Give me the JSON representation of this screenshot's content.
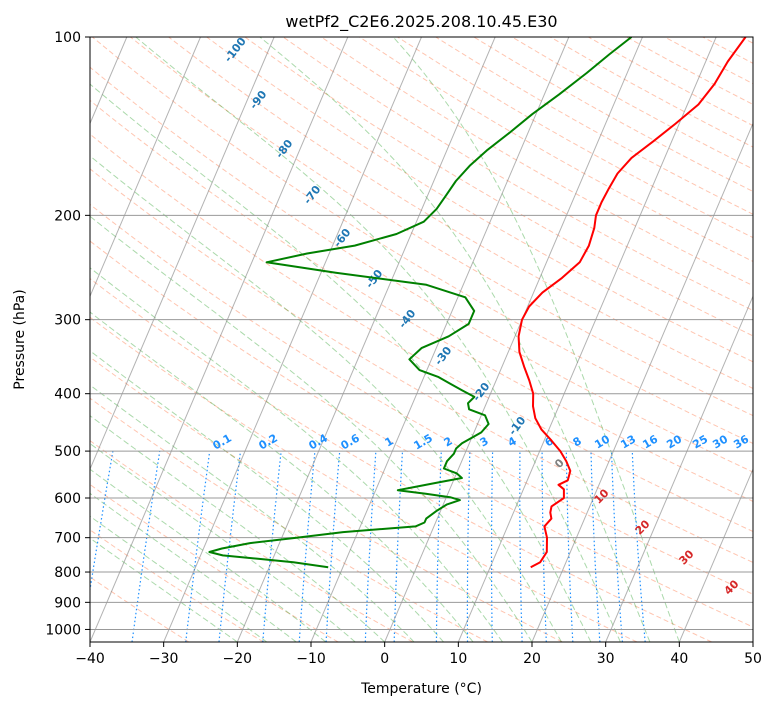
{
  "chart_data": {
    "type": "skew-t",
    "title": "wetPf2_C2E6.2025.208.10.45.E30",
    "xlabel": "Temperature (°C)",
    "ylabel": "Pressure (hPa)",
    "xlim": [
      -40,
      50
    ],
    "ylim": [
      1050,
      100
    ],
    "y_scale": "log",
    "grid": true,
    "x_ticks": [
      -40,
      -30,
      -20,
      -10,
      0,
      10,
      20,
      30,
      40,
      50
    ],
    "y_ticks": [
      100,
      200,
      300,
      400,
      500,
      600,
      700,
      800,
      900,
      1000
    ],
    "colors": {
      "temperature": "#ff0000",
      "dewpoint": "#008000",
      "dry_adiabat": "#ff7f50",
      "moist_adiabat": "#2ca02c",
      "mixing_ratio": "#1e90ff",
      "isotherm": "#808080",
      "potential_temp_label": "#1f77b4",
      "warm_isotherm_label": "#d62728"
    },
    "series": [
      {
        "name": "temperature",
        "pressure": [
          785,
          770,
          740,
          700,
          670,
          650,
          635,
          620,
          600,
          580,
          570,
          560,
          540,
          520,
          500,
          480,
          460,
          440,
          420,
          400,
          380,
          360,
          340,
          320,
          300,
          285,
          270,
          255,
          240,
          225,
          210,
          200,
          190,
          180,
          170,
          160,
          150,
          140,
          130,
          120,
          110,
          100
        ],
        "temperature": [
          15.5,
          16.5,
          16.8,
          16.0,
          15.0,
          15.5,
          15.0,
          14.8,
          16.0,
          15.5,
          14.5,
          15.5,
          15.3,
          14.2,
          12.8,
          11.0,
          9.0,
          7.5,
          6.5,
          5.8,
          4.5,
          3.0,
          1.5,
          0.5,
          0.0,
          0.2,
          1.2,
          3.0,
          4.5,
          4.8,
          4.5,
          4.0,
          4.0,
          4.2,
          4.5,
          5.5,
          7.5,
          9.5,
          11.5,
          12.5,
          13.0,
          14.0
        ]
      },
      {
        "name": "dewpoint",
        "pressure": [
          785,
          770,
          760,
          750,
          740,
          730,
          715,
          700,
          685,
          670,
          660,
          650,
          640,
          630,
          615,
          605,
          598,
          590,
          582,
          575,
          565,
          555,
          545,
          535,
          520,
          505,
          495,
          485,
          475,
          465,
          450,
          435,
          425,
          415,
          405,
          395,
          385,
          375,
          365,
          350,
          335,
          320,
          305,
          290,
          275,
          262,
          250,
          240,
          232,
          225,
          215,
          205,
          195,
          185,
          175,
          165,
          155,
          145,
          135,
          125,
          115,
          107,
          100
        ],
        "temperature": [
          -12.0,
          -17.0,
          -22.0,
          -27.0,
          -29.0,
          -27.5,
          -24.0,
          -18.0,
          -12.0,
          -2.5,
          -1.5,
          -1.5,
          -1.0,
          -0.5,
          0.5,
          2.0,
          0.5,
          -3.0,
          -7.0,
          -5.0,
          -2.0,
          1.0,
          0.0,
          -2.0,
          -2.0,
          -1.5,
          -1.5,
          -1.0,
          0.0,
          1.0,
          1.5,
          0.5,
          -2.0,
          -2.5,
          -2.0,
          -4.0,
          -6.0,
          -8.0,
          -11.0,
          -13.0,
          -12.0,
          -9.0,
          -7.0,
          -7.0,
          -9.0,
          -15.0,
          -28.0,
          -38.0,
          -33.0,
          -27.0,
          -22.0,
          -19.0,
          -18.0,
          -17.5,
          -17.0,
          -16.0,
          -14.5,
          -12.5,
          -10.5,
          -8.0,
          -5.5,
          -3.5,
          -1.5
        ]
      }
    ],
    "potential_temp_labels": [
      "-100",
      "-90",
      "-80",
      "-70",
      "-60",
      "-50",
      "-40",
      "-30",
      "-20",
      "-10"
    ],
    "mixing_ratio_labels": [
      "0.1",
      "0.2",
      "0.4",
      "0.6",
      "1",
      "1.5",
      "2",
      "3",
      "4",
      "6",
      "8",
      "10",
      "13",
      "16",
      "20",
      "25",
      "30",
      "36"
    ],
    "isotherm_labels": [
      "0",
      "10",
      "20",
      "30",
      "40"
    ]
  }
}
